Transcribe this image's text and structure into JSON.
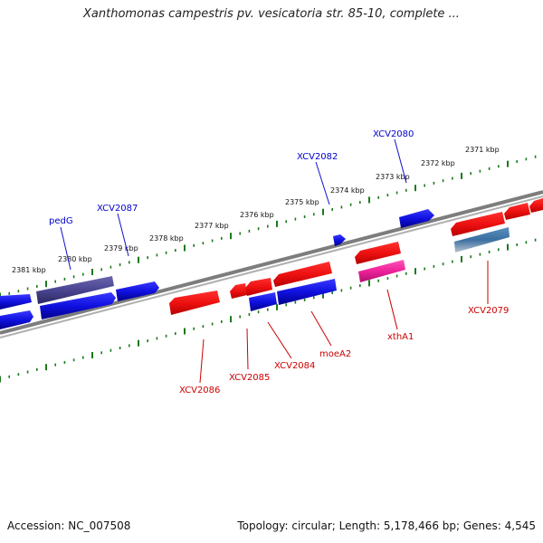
{
  "title": "Xanthomonas campestris pv. vesicatoria str. 85-10, complete ...",
  "footer": {
    "accession": "Accession: NC_007508",
    "stats": "Topology: circular; Length: 5,178,466 bp; Genes: 4,545"
  },
  "colors": {
    "forward_gene": "#1010e0",
    "reverse_gene": "#ee1111",
    "highlight_blue_gene": "#4a4590",
    "highlight_pink_gene": "#ee2299",
    "rna_gene": "#3a6fa0",
    "backbone": "#808080",
    "ticks": "#1a7a1a",
    "label_forward": "#0000cc",
    "label_reverse": "#cc0000"
  },
  "scale_ticks": [
    {
      "label": "2381 kbp"
    },
    {
      "label": "2380 kbp"
    },
    {
      "label": "2379 kbp"
    },
    {
      "label": "2378 kbp"
    },
    {
      "label": "2377 kbp"
    },
    {
      "label": "2376 kbp"
    },
    {
      "label": "2375 kbp"
    },
    {
      "label": "2374 kbp"
    },
    {
      "label": "2373 kbp"
    },
    {
      "label": "2372 kbp"
    },
    {
      "label": "2371 kbp"
    }
  ],
  "gene_labels_forward": [
    "pedG",
    "XCV2087",
    "XCV2082",
    "XCV2080"
  ],
  "gene_labels_reverse": [
    "XCV2086",
    "XCV2085",
    "XCV2084",
    "moeA2",
    "xthA1",
    "XCV2079"
  ]
}
